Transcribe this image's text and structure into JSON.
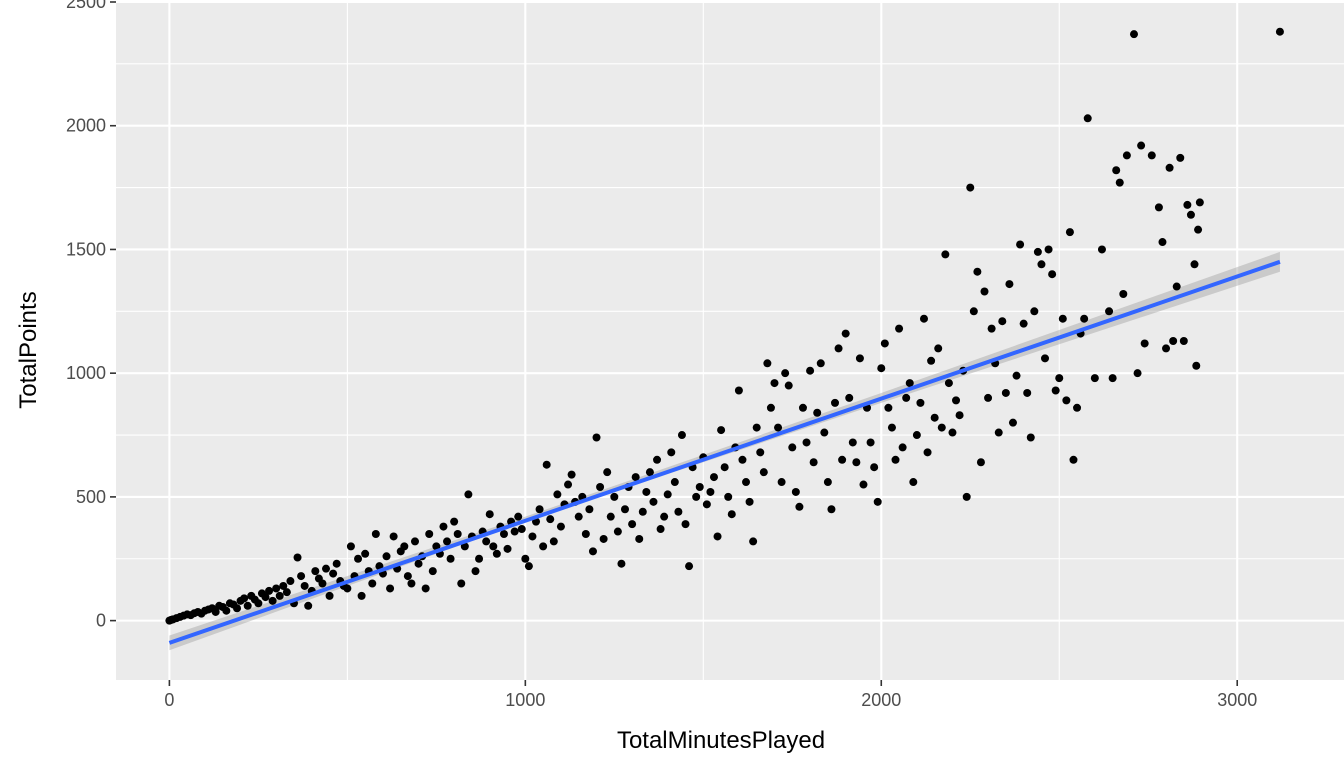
{
  "chart_data": {
    "type": "scatter",
    "title": "",
    "xlabel": "TotalMinutesPlayed",
    "ylabel": "TotalPoints",
    "xlim": [
      -150,
      3300
    ],
    "ylim": [
      -240,
      2500
    ],
    "x_ticks": [
      0,
      1000,
      2000,
      3000
    ],
    "x_tick_labels": [
      "0",
      "1000",
      "2000",
      "3000"
    ],
    "y_ticks": [
      0,
      500,
      1000,
      1500,
      2000,
      2500
    ],
    "y_tick_labels": [
      "0",
      "500",
      "1000",
      "1500",
      "2000",
      "2500"
    ],
    "grid": true,
    "panel_background": "#EBEBEB",
    "grid_color": "#FFFFFF",
    "point_color": "#000000",
    "points": [
      [
        0,
        0
      ],
      [
        5,
        3
      ],
      [
        10,
        5
      ],
      [
        20,
        10
      ],
      [
        30,
        15
      ],
      [
        40,
        20
      ],
      [
        50,
        25
      ],
      [
        60,
        22
      ],
      [
        70,
        30
      ],
      [
        80,
        35
      ],
      [
        90,
        28
      ],
      [
        100,
        40
      ],
      [
        110,
        45
      ],
      [
        120,
        50
      ],
      [
        130,
        35
      ],
      [
        140,
        60
      ],
      [
        150,
        55
      ],
      [
        160,
        40
      ],
      [
        170,
        70
      ],
      [
        180,
        65
      ],
      [
        190,
        50
      ],
      [
        200,
        80
      ],
      [
        210,
        90
      ],
      [
        220,
        60
      ],
      [
        230,
        100
      ],
      [
        240,
        85
      ],
      [
        250,
        70
      ],
      [
        260,
        110
      ],
      [
        270,
        95
      ],
      [
        280,
        120
      ],
      [
        290,
        80
      ],
      [
        300,
        130
      ],
      [
        310,
        100
      ],
      [
        320,
        140
      ],
      [
        330,
        115
      ],
      [
        340,
        160
      ],
      [
        350,
        70
      ],
      [
        360,
        255
      ],
      [
        370,
        180
      ],
      [
        380,
        140
      ],
      [
        390,
        60
      ],
      [
        400,
        120
      ],
      [
        410,
        200
      ],
      [
        420,
        170
      ],
      [
        430,
        150
      ],
      [
        440,
        210
      ],
      [
        450,
        100
      ],
      [
        460,
        190
      ],
      [
        470,
        230
      ],
      [
        480,
        160
      ],
      [
        490,
        140
      ],
      [
        500,
        130
      ],
      [
        510,
        300
      ],
      [
        520,
        180
      ],
      [
        530,
        250
      ],
      [
        540,
        100
      ],
      [
        550,
        270
      ],
      [
        560,
        200
      ],
      [
        570,
        150
      ],
      [
        580,
        350
      ],
      [
        590,
        220
      ],
      [
        600,
        190
      ],
      [
        610,
        260
      ],
      [
        620,
        130
      ],
      [
        630,
        340
      ],
      [
        640,
        210
      ],
      [
        650,
        280
      ],
      [
        660,
        300
      ],
      [
        670,
        180
      ],
      [
        680,
        150
      ],
      [
        690,
        320
      ],
      [
        700,
        230
      ],
      [
        710,
        260
      ],
      [
        720,
        130
      ],
      [
        730,
        350
      ],
      [
        740,
        200
      ],
      [
        750,
        300
      ],
      [
        760,
        270
      ],
      [
        770,
        380
      ],
      [
        780,
        320
      ],
      [
        790,
        250
      ],
      [
        800,
        400
      ],
      [
        810,
        350
      ],
      [
        820,
        150
      ],
      [
        830,
        300
      ],
      [
        840,
        510
      ],
      [
        850,
        340
      ],
      [
        860,
        200
      ],
      [
        870,
        250
      ],
      [
        880,
        360
      ],
      [
        890,
        320
      ],
      [
        900,
        430
      ],
      [
        910,
        300
      ],
      [
        920,
        270
      ],
      [
        930,
        380
      ],
      [
        940,
        350
      ],
      [
        950,
        290
      ],
      [
        960,
        400
      ],
      [
        970,
        360
      ],
      [
        980,
        420
      ],
      [
        990,
        370
      ],
      [
        1000,
        250
      ],
      [
        1010,
        220
      ],
      [
        1020,
        340
      ],
      [
        1030,
        400
      ],
      [
        1040,
        450
      ],
      [
        1050,
        300
      ],
      [
        1060,
        630
      ],
      [
        1070,
        410
      ],
      [
        1080,
        320
      ],
      [
        1090,
        510
      ],
      [
        1100,
        380
      ],
      [
        1110,
        470
      ],
      [
        1120,
        550
      ],
      [
        1130,
        590
      ],
      [
        1140,
        480
      ],
      [
        1150,
        420
      ],
      [
        1160,
        500
      ],
      [
        1170,
        350
      ],
      [
        1180,
        450
      ],
      [
        1190,
        280
      ],
      [
        1200,
        740
      ],
      [
        1210,
        540
      ],
      [
        1220,
        330
      ],
      [
        1230,
        600
      ],
      [
        1240,
        420
      ],
      [
        1250,
        500
      ],
      [
        1260,
        360
      ],
      [
        1270,
        230
      ],
      [
        1280,
        450
      ],
      [
        1290,
        540
      ],
      [
        1300,
        390
      ],
      [
        1310,
        580
      ],
      [
        1320,
        330
      ],
      [
        1330,
        440
      ],
      [
        1340,
        520
      ],
      [
        1350,
        600
      ],
      [
        1360,
        480
      ],
      [
        1370,
        650
      ],
      [
        1380,
        370
      ],
      [
        1390,
        420
      ],
      [
        1400,
        510
      ],
      [
        1410,
        680
      ],
      [
        1420,
        560
      ],
      [
        1430,
        440
      ],
      [
        1440,
        750
      ],
      [
        1450,
        390
      ],
      [
        1460,
        220
      ],
      [
        1470,
        620
      ],
      [
        1480,
        500
      ],
      [
        1490,
        540
      ],
      [
        1500,
        660
      ],
      [
        1510,
        470
      ],
      [
        1520,
        520
      ],
      [
        1530,
        580
      ],
      [
        1540,
        340
      ],
      [
        1550,
        770
      ],
      [
        1560,
        620
      ],
      [
        1570,
        500
      ],
      [
        1580,
        430
      ],
      [
        1590,
        700
      ],
      [
        1600,
        930
      ],
      [
        1610,
        650
      ],
      [
        1620,
        560
      ],
      [
        1630,
        480
      ],
      [
        1640,
        320
      ],
      [
        1650,
        780
      ],
      [
        1660,
        680
      ],
      [
        1670,
        600
      ],
      [
        1680,
        1040
      ],
      [
        1690,
        860
      ],
      [
        1700,
        960
      ],
      [
        1710,
        780
      ],
      [
        1720,
        560
      ],
      [
        1730,
        1000
      ],
      [
        1740,
        950
      ],
      [
        1750,
        700
      ],
      [
        1760,
        520
      ],
      [
        1770,
        460
      ],
      [
        1780,
        860
      ],
      [
        1790,
        720
      ],
      [
        1800,
        1010
      ],
      [
        1810,
        640
      ],
      [
        1820,
        840
      ],
      [
        1830,
        1040
      ],
      [
        1840,
        760
      ],
      [
        1850,
        560
      ],
      [
        1860,
        450
      ],
      [
        1870,
        880
      ],
      [
        1880,
        1100
      ],
      [
        1890,
        650
      ],
      [
        1900,
        1160
      ],
      [
        1910,
        900
      ],
      [
        1920,
        720
      ],
      [
        1930,
        640
      ],
      [
        1940,
        1060
      ],
      [
        1950,
        550
      ],
      [
        1960,
        860
      ],
      [
        1970,
        720
      ],
      [
        1980,
        620
      ],
      [
        1990,
        480
      ],
      [
        2000,
        1020
      ],
      [
        2010,
        1120
      ],
      [
        2020,
        860
      ],
      [
        2030,
        780
      ],
      [
        2040,
        650
      ],
      [
        2050,
        1180
      ],
      [
        2060,
        700
      ],
      [
        2070,
        900
      ],
      [
        2080,
        960
      ],
      [
        2090,
        560
      ],
      [
        2100,
        750
      ],
      [
        2110,
        880
      ],
      [
        2120,
        1220
      ],
      [
        2130,
        680
      ],
      [
        2140,
        1050
      ],
      [
        2150,
        820
      ],
      [
        2160,
        1100
      ],
      [
        2170,
        780
      ],
      [
        2180,
        1480
      ],
      [
        2190,
        960
      ],
      [
        2200,
        760
      ],
      [
        2210,
        890
      ],
      [
        2220,
        830
      ],
      [
        2230,
        1010
      ],
      [
        2240,
        500
      ],
      [
        2250,
        1750
      ],
      [
        2260,
        1250
      ],
      [
        2270,
        1410
      ],
      [
        2280,
        640
      ],
      [
        2290,
        1330
      ],
      [
        2300,
        900
      ],
      [
        2310,
        1180
      ],
      [
        2320,
        1040
      ],
      [
        2330,
        760
      ],
      [
        2340,
        1210
      ],
      [
        2350,
        920
      ],
      [
        2360,
        1360
      ],
      [
        2370,
        800
      ],
      [
        2380,
        990
      ],
      [
        2390,
        1520
      ],
      [
        2400,
        1200
      ],
      [
        2410,
        920
      ],
      [
        2420,
        740
      ],
      [
        2430,
        1250
      ],
      [
        2440,
        1490
      ],
      [
        2450,
        1440
      ],
      [
        2460,
        1060
      ],
      [
        2470,
        1500
      ],
      [
        2480,
        1400
      ],
      [
        2490,
        930
      ],
      [
        2500,
        980
      ],
      [
        2510,
        1220
      ],
      [
        2520,
        890
      ],
      [
        2530,
        1570
      ],
      [
        2540,
        650
      ],
      [
        2550,
        860
      ],
      [
        2560,
        1160
      ],
      [
        2570,
        1220
      ],
      [
        2580,
        2030
      ],
      [
        2600,
        980
      ],
      [
        2620,
        1500
      ],
      [
        2640,
        1250
      ],
      [
        2650,
        980
      ],
      [
        2660,
        1820
      ],
      [
        2670,
        1770
      ],
      [
        2680,
        1320
      ],
      [
        2690,
        1880
      ],
      [
        2710,
        2370
      ],
      [
        2720,
        1000
      ],
      [
        2730,
        1920
      ],
      [
        2740,
        1120
      ],
      [
        2760,
        1880
      ],
      [
        2780,
        1670
      ],
      [
        2790,
        1530
      ],
      [
        2800,
        1100
      ],
      [
        2810,
        1830
      ],
      [
        2820,
        1130
      ],
      [
        2830,
        1350
      ],
      [
        2840,
        1870
      ],
      [
        2850,
        1130
      ],
      [
        2860,
        1680
      ],
      [
        2870,
        1640
      ],
      [
        2880,
        1440
      ],
      [
        2885,
        1030
      ],
      [
        2890,
        1580
      ],
      [
        2895,
        1690
      ],
      [
        3120,
        2380
      ]
    ],
    "regression_line": {
      "x": [
        0,
        3120
      ],
      "y": [
        -90,
        1450
      ],
      "color": "#3366FF"
    },
    "confidence_band": {
      "x": [
        0,
        1000,
        2000,
        3120
      ],
      "upper": [
        -60,
        420,
        920,
        1490
      ],
      "lower": [
        -120,
        400,
        880,
        1410
      ],
      "color": "#999999"
    }
  }
}
